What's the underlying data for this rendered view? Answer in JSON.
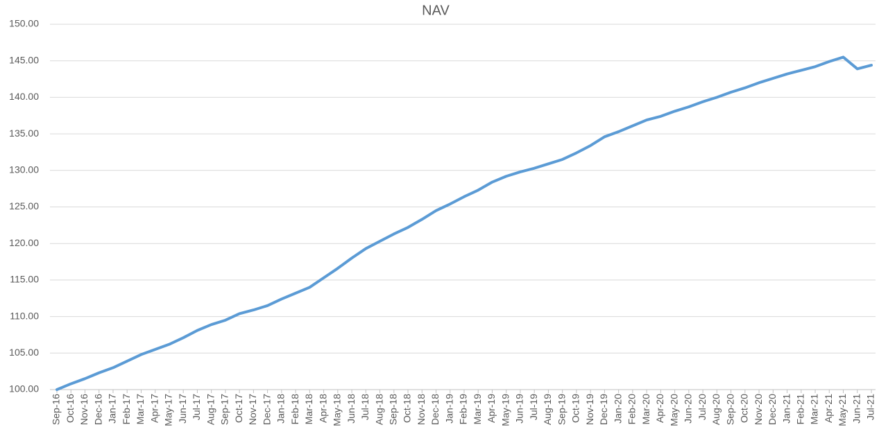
{
  "chart_data": {
    "type": "line",
    "title": "NAV",
    "categories": [
      "Sep-16",
      "Oct-16",
      "Nov-16",
      "Dec-16",
      "Jan-17",
      "Feb-17",
      "Mar-17",
      "Apr-17",
      "May-17",
      "Jun-17",
      "Jul-17",
      "Aug-17",
      "Sep-17",
      "Oct-17",
      "Nov-17",
      "Dec-17",
      "Jan-18",
      "Feb-18",
      "Mar-18",
      "Apr-18",
      "May-18",
      "Jun-18",
      "Jul-18",
      "Aug-18",
      "Sep-18",
      "Oct-18",
      "Nov-18",
      "Dec-18",
      "Jan-19",
      "Feb-19",
      "Mar-19",
      "Apr-19",
      "May-19",
      "Jun-19",
      "Jul-19",
      "Aug-19",
      "Sep-19",
      "Oct-19",
      "Nov-19",
      "Dec-19",
      "Jan-20",
      "Feb-20",
      "Mar-20",
      "Apr-20",
      "May-20",
      "Jun-20",
      "Jul-20",
      "Aug-20",
      "Sep-20",
      "Oct-20",
      "Nov-20",
      "Dec-20",
      "Jan-21",
      "Feb-21",
      "Mar-21",
      "Apr-21",
      "May-21",
      "Jun-21",
      "Jul-21"
    ],
    "series": [
      {
        "color": "#5b9bd5",
        "values": [
          100.0,
          100.8,
          101.5,
          102.3,
          103.0,
          103.9,
          104.8,
          105.5,
          106.2,
          107.1,
          108.1,
          108.9,
          109.5,
          110.4,
          110.9,
          111.5,
          112.4,
          113.2,
          114.0,
          115.3,
          116.6,
          118.0,
          119.3,
          120.3,
          121.3,
          122.2,
          123.3,
          124.5,
          125.4,
          126.4,
          127.3,
          128.4,
          129.2,
          129.8,
          130.3,
          130.9,
          131.5,
          132.4,
          133.4,
          134.6,
          135.3,
          136.1,
          136.9,
          137.4,
          138.1,
          138.7,
          139.4,
          140.0,
          140.7,
          141.3,
          142.0,
          142.6,
          143.2,
          143.7,
          144.2,
          144.9,
          145.5,
          143.9,
          144.4
        ]
      }
    ],
    "ylim": [
      100,
      150
    ],
    "yticks": [
      {
        "value": 100,
        "label": "100.00"
      },
      {
        "value": 105,
        "label": "105.00"
      },
      {
        "value": 110,
        "label": "110.00"
      },
      {
        "value": 115,
        "label": "115.00"
      },
      {
        "value": 120,
        "label": "120.00"
      },
      {
        "value": 125,
        "label": "125.00"
      },
      {
        "value": 130,
        "label": "130.00"
      },
      {
        "value": 135,
        "label": "135.00"
      },
      {
        "value": 140,
        "label": "140.00"
      },
      {
        "value": 145,
        "label": "145.00"
      },
      {
        "value": 150,
        "label": "150.00"
      }
    ],
    "grid": true
  }
}
